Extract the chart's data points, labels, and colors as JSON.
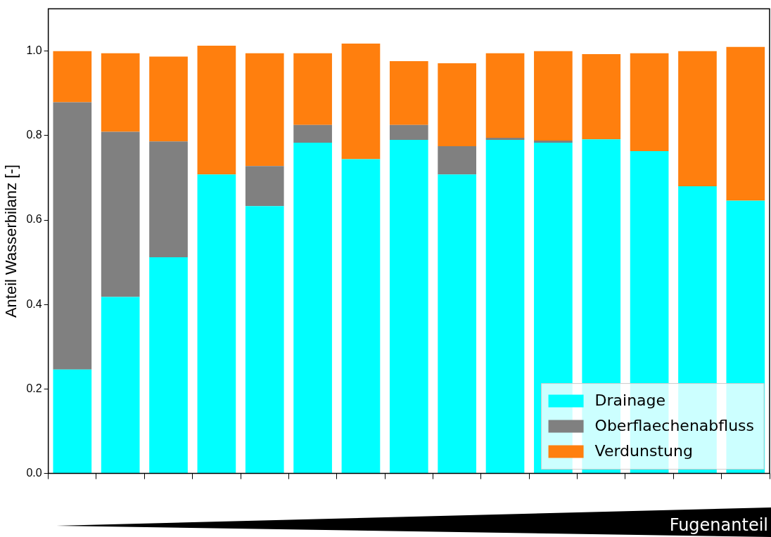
{
  "chart_data": {
    "type": "bar",
    "stacked": true,
    "xlabel": "Fugenanteil",
    "ylabel": "Anteil Wasserbilanz [-]",
    "categories": [
      null,
      null,
      null,
      null,
      null,
      null,
      null,
      null,
      null,
      null,
      null,
      null,
      null,
      null,
      null
    ],
    "series": [
      {
        "name": "Drainage",
        "color": "#00ffff",
        "values": [
          0.246,
          0.418,
          0.512,
          0.708,
          0.633,
          0.783,
          0.744,
          0.79,
          0.708,
          0.79,
          0.783,
          0.791,
          0.763,
          0.68,
          0.646
        ]
      },
      {
        "name": "Oberflaechenabfluss",
        "color": "#808080",
        "values": [
          0.633,
          0.391,
          0.274,
          0,
          0.095,
          0.042,
          0,
          0.035,
          0.067,
          0.005,
          0.005,
          0,
          0,
          0,
          0
        ]
      },
      {
        "name": "Verdunstung",
        "color": "#ff7f0e",
        "values": [
          0.121,
          0.186,
          0.201,
          0.305,
          0.267,
          0.17,
          0.274,
          0.151,
          0.196,
          0.2,
          0.212,
          0.202,
          0.232,
          0.32,
          0.364
        ]
      }
    ],
    "ylim": [
      0,
      1.1
    ],
    "yticks": [
      {
        "value": 0,
        "label": "0.0"
      },
      0.2,
      0.4,
      0.6,
      0.8,
      {
        "value": 1,
        "label": "1.0"
      }
    ],
    "grid": false,
    "legend": "bottom right"
  }
}
